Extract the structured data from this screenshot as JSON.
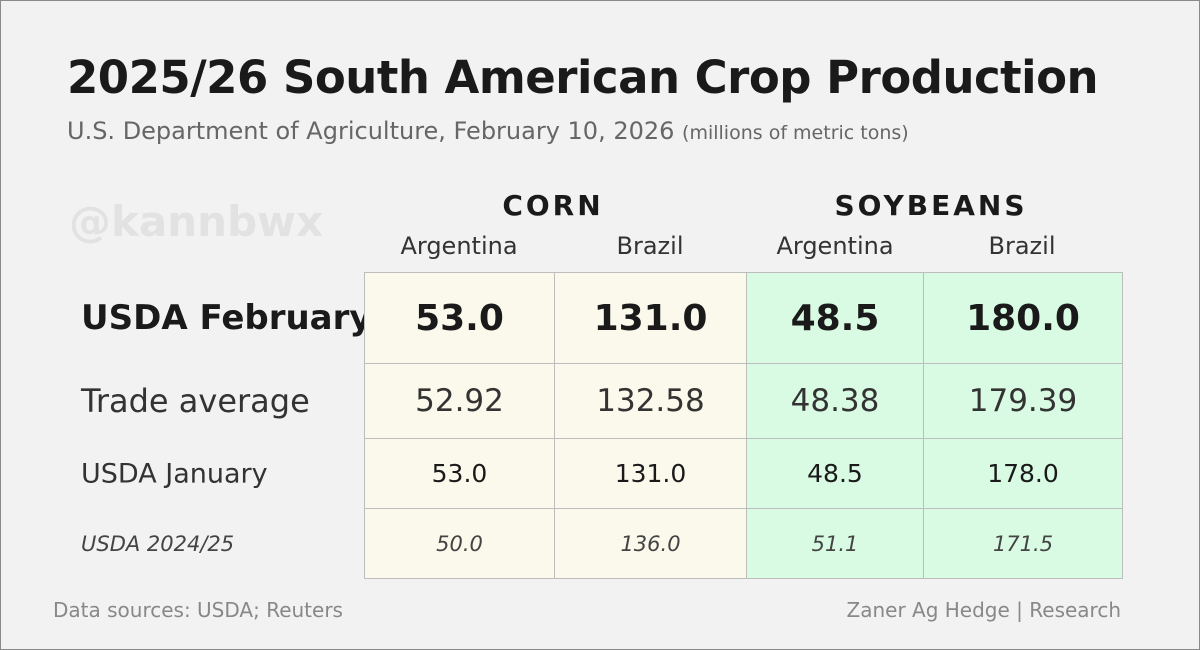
{
  "title": "2025/26 South American Crop Production",
  "subtitle": "U.S. Department of Agriculture, February 10, 2026",
  "units": "(millions of metric tons)",
  "watermark": "@kannbwx",
  "footer": {
    "left": "Data sources: USDA; Reuters",
    "right": "Zaner Ag Hedge | Research"
  },
  "colors": {
    "corn": "#fbf9ec",
    "soybeans": "#d9fbe3"
  },
  "chart_data": {
    "type": "table",
    "groups": [
      "CORN",
      "SOYBEANS"
    ],
    "columns": [
      "Argentina",
      "Brazil",
      "Argentina",
      "Brazil"
    ],
    "rows": [
      {
        "label": "USDA February",
        "values": [
          "53.0",
          "131.0",
          "48.5",
          "180.0"
        ]
      },
      {
        "label": "Trade average",
        "values": [
          "52.92",
          "132.58",
          "48.38",
          "179.39"
        ]
      },
      {
        "label": "USDA January",
        "values": [
          "53.0",
          "131.0",
          "48.5",
          "178.0"
        ]
      },
      {
        "label": "USDA 2024/25",
        "values": [
          "50.0",
          "136.0",
          "51.1",
          "171.5"
        ]
      }
    ]
  }
}
